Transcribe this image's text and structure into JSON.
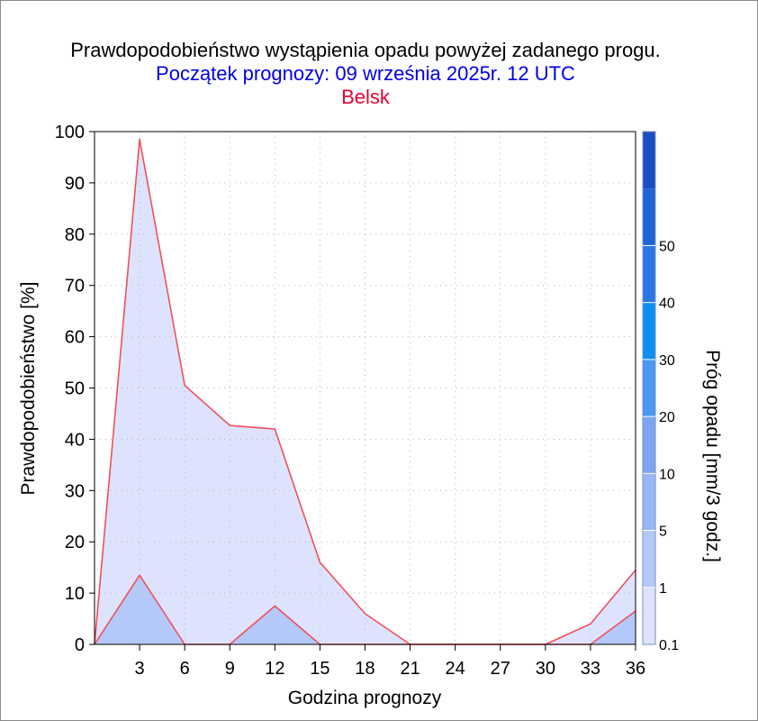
{
  "header": {
    "title": "Prawdopodobieństwo wystąpienia opadu powyżej zadanego progu.",
    "subtitle": "Początek prognozy: 09 września 2025r. 12 UTC",
    "location": "Belsk"
  },
  "chart_data": {
    "type": "area",
    "title": "Prawdopodobieństwo wystąpienia opadu powyżej zadanego progu.",
    "xlabel": "Godzina prognozy",
    "ylabel": "Prawdopodobieństwo [%]",
    "xlim": [
      0,
      36
    ],
    "ylim": [
      0,
      100
    ],
    "x": [
      0,
      3,
      6,
      9,
      12,
      15,
      18,
      21,
      24,
      27,
      30,
      33,
      36
    ],
    "xticks": [
      "3",
      "6",
      "9",
      "12",
      "15",
      "18",
      "21",
      "24",
      "27",
      "30",
      "33",
      "36"
    ],
    "yticks": [
      "0",
      "10",
      "20",
      "30",
      "40",
      "50",
      "60",
      "70",
      "80",
      "90",
      "100"
    ],
    "grid": true,
    "series": [
      {
        "threshold": 0.1,
        "color": "#dde3fd",
        "values": [
          0,
          98.5,
          50.5,
          42.7,
          42,
          16,
          6,
          0,
          0,
          0,
          0,
          4,
          14.5
        ]
      },
      {
        "threshold": 1,
        "color": "#b4c9f9",
        "values": [
          0,
          13.5,
          0,
          0,
          7.5,
          0,
          0,
          0,
          0,
          0,
          0,
          0,
          6.5
        ]
      }
    ],
    "line_color": "#f0505a",
    "colorbar": {
      "label": "Próg opadu [mm/3 godz.]",
      "ticks": [
        "0.1",
        "1",
        "5",
        "10",
        "20",
        "30",
        "40",
        "50"
      ],
      "colors": [
        "#dde3fd",
        "#b4c9f9",
        "#97b7f6",
        "#7aa6f4",
        "#4a98f2",
        "#0e8ef2",
        "#2a78e6",
        "#1f64d6",
        "#1a4fc0"
      ]
    }
  }
}
